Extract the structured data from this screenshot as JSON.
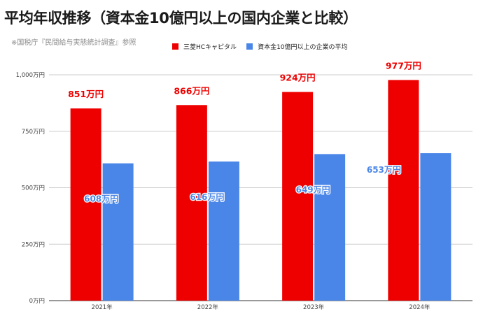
{
  "header": {
    "title": "平均年収推移（資本金10億円以上の国内企業と比較）",
    "source": "※国税庁『民間給与実態統計調査』参照"
  },
  "colors": {
    "series1": "#ee0000",
    "series2": "#4a86e8",
    "grid": "#cccccc",
    "axis": "#333333"
  },
  "chart_data": {
    "type": "bar",
    "categories": [
      "2021年",
      "2022年",
      "2023年",
      "2024年"
    ],
    "series": [
      {
        "name": "三菱HCキャピタル",
        "values": [
          851,
          866,
          924,
          977
        ],
        "data_labels": [
          "851万円",
          "866万円",
          "924万円",
          "977万円"
        ]
      },
      {
        "name": "資本金10億円以上の企業の平均",
        "values": [
          608,
          616,
          649,
          653
        ],
        "data_labels": [
          "608万円",
          "616万円",
          "649万円",
          "653万円"
        ]
      }
    ],
    "ylim": [
      0,
      1000
    ],
    "y_ticks": [
      0,
      250,
      500,
      750,
      1000
    ],
    "y_tick_labels": [
      "0万円",
      "250万円",
      "500万円",
      "750万円",
      "1,000万円"
    ],
    "grid": true,
    "legend_position": "top"
  }
}
